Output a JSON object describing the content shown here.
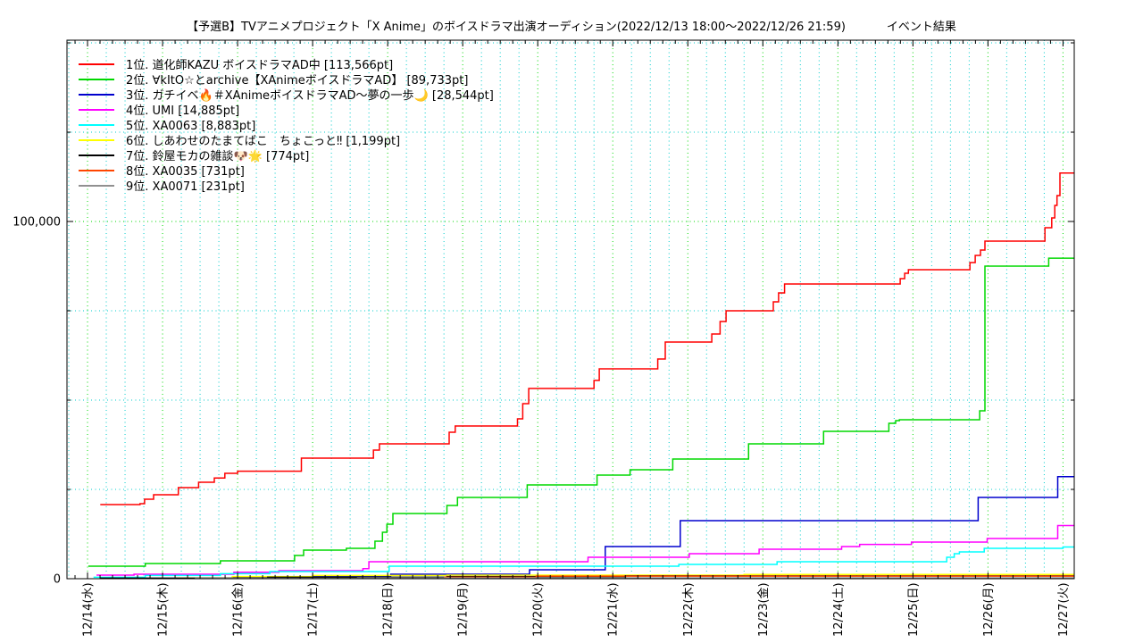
{
  "title": {
    "main": "【予選B】TVアニメプロジェクト「X Anime」のボイスドラマ出演オーディション(2022/12/13 18:00〜2022/12/26 21:59)",
    "suffix": "イベント結果"
  },
  "chart_data": {
    "type": "line",
    "subtype": "step-after",
    "grid": true,
    "legend_position": "top-left",
    "x_range_days": [
      -0.274,
      13.15
    ],
    "y_range": [
      0,
      150750
    ],
    "x_tick_labels": [
      "12/14(水)",
      "12/15(木)",
      "12/16(金)",
      "12/17(土)",
      "12/18(日)",
      "12/19(月)",
      "12/20(火)",
      "12/21(水)",
      "12/22(木)",
      "12/23(金)",
      "12/24(土)",
      "12/25(日)",
      "12/26(月)",
      "12/27(火)"
    ],
    "y_tick_labels": [
      {
        "value": 0,
        "label": "0"
      },
      {
        "value": 100000,
        "label": "100,000"
      }
    ],
    "grid_style": {
      "x_minor_step_days": 0.25,
      "x_major_step_days": 1,
      "y_minor_step": 25000,
      "y_major_step": 100000,
      "minor_color": "#00cccc",
      "major_color": "#00d800"
    },
    "axis_tick_style": {
      "x_minor_step_days": 0.16667,
      "y_minor_step": 25000,
      "minor_len": 4,
      "major_len": 7
    },
    "series": [
      {
        "rank": 1,
        "name": "道化師KAZU ボイスドラマAD中",
        "final_pt": 113566,
        "legend_label": "1位. 道化師KAZU ボイスドラマAD中 [113,566pt]",
        "color": "#ff0000",
        "points": [
          [
            0.17,
            20750
          ],
          [
            0.7,
            21000
          ],
          [
            0.76,
            22250
          ],
          [
            0.88,
            23500
          ],
          [
            1.21,
            25500
          ],
          [
            1.48,
            27000
          ],
          [
            1.69,
            28200
          ],
          [
            1.83,
            29500
          ],
          [
            2.0,
            30100
          ],
          [
            2.85,
            33750
          ],
          [
            3.81,
            36000
          ],
          [
            3.89,
            37750
          ],
          [
            4.82,
            41000
          ],
          [
            4.9,
            42750
          ],
          [
            5.73,
            44750
          ],
          [
            5.8,
            49000
          ],
          [
            5.88,
            53250
          ],
          [
            6.75,
            55500
          ],
          [
            6.82,
            58750
          ],
          [
            7.6,
            61500
          ],
          [
            7.7,
            66250
          ],
          [
            8.32,
            68500
          ],
          [
            8.43,
            72000
          ],
          [
            8.51,
            75000
          ],
          [
            9.14,
            77500
          ],
          [
            9.21,
            80000
          ],
          [
            9.29,
            82500
          ],
          [
            10.83,
            84000
          ],
          [
            10.89,
            85500
          ],
          [
            10.94,
            86500
          ],
          [
            11.76,
            88500
          ],
          [
            11.83,
            90500
          ],
          [
            11.9,
            92000
          ],
          [
            11.96,
            94500
          ],
          [
            12.76,
            98250
          ],
          [
            12.85,
            101000
          ],
          [
            12.89,
            104500
          ],
          [
            12.92,
            107250
          ],
          [
            12.96,
            113566
          ]
        ]
      },
      {
        "rank": 2,
        "name": "∀kItO☆とarchive【XAnimeボイスドラマAD】",
        "final_pt": 89733,
        "legend_label": "2位. ∀kItO☆とarchive【XAnimeボイスドラマAD】 [89,733pt]",
        "color": "#00d800",
        "points": [
          [
            0.01,
            3500
          ],
          [
            0.77,
            4250
          ],
          [
            1.77,
            5000
          ],
          [
            2.76,
            6500
          ],
          [
            2.88,
            8000
          ],
          [
            3.45,
            8500
          ],
          [
            3.83,
            10500
          ],
          [
            3.93,
            13000
          ],
          [
            3.99,
            15250
          ],
          [
            4.07,
            18250
          ],
          [
            4.79,
            20500
          ],
          [
            4.93,
            22750
          ],
          [
            5.86,
            26250
          ],
          [
            6.79,
            29000
          ],
          [
            7.23,
            30500
          ],
          [
            7.8,
            33500
          ],
          [
            8.81,
            37750
          ],
          [
            9.81,
            41250
          ],
          [
            10.68,
            43500
          ],
          [
            10.77,
            44250
          ],
          [
            10.82,
            44500
          ],
          [
            11.89,
            47000
          ],
          [
            11.96,
            87500
          ],
          [
            12.81,
            89733
          ]
        ]
      },
      {
        "rank": 3,
        "name": "ガチイベ🔥＃XAnimeボイスドラマAD〜夢の一歩🌙",
        "final_pt": 28544,
        "legend_label": "3位. ガチイベ🔥＃XAnimeボイスドラマAD〜夢の一歩🌙 [28,544pt]",
        "color": "#0000cd",
        "points": [
          [
            0.2,
            100
          ],
          [
            1.93,
            400
          ],
          [
            3.0,
            700
          ],
          [
            4.04,
            1250
          ],
          [
            5.89,
            2500
          ],
          [
            6.9,
            9000
          ],
          [
            7.9,
            16250
          ],
          [
            11.87,
            22750
          ],
          [
            12.93,
            28544
          ]
        ]
      },
      {
        "rank": 4,
        "name": "UMI",
        "final_pt": 14885,
        "legend_label": "4位. UMI [14,885pt]",
        "color": "#ff00ff",
        "points": [
          [
            0.12,
            1000
          ],
          [
            0.62,
            1250
          ],
          [
            1.95,
            1800
          ],
          [
            2.55,
            2250
          ],
          [
            3.67,
            2800
          ],
          [
            3.75,
            4750
          ],
          [
            6.67,
            6000
          ],
          [
            8.02,
            7000
          ],
          [
            8.95,
            8250
          ],
          [
            10.05,
            9000
          ],
          [
            10.29,
            9600
          ],
          [
            10.98,
            10250
          ],
          [
            11.99,
            11250
          ],
          [
            12.93,
            14885
          ]
        ]
      },
      {
        "rank": 5,
        "name": "XA0063",
        "final_pt": 8883,
        "legend_label": "5位. XA0063 [8,883pt]",
        "color": "#00ffff",
        "points": [
          [
            0.08,
            400
          ],
          [
            0.77,
            900
          ],
          [
            1.77,
            1400
          ],
          [
            2.43,
            2000
          ],
          [
            4.02,
            3500
          ],
          [
            7.88,
            4000
          ],
          [
            9.19,
            4750
          ],
          [
            11.45,
            6000
          ],
          [
            11.55,
            7000
          ],
          [
            11.62,
            7500
          ],
          [
            11.95,
            8500
          ],
          [
            13.0,
            8883
          ]
        ]
      },
      {
        "rank": 6,
        "name": "しあわせのたまてばこ　ちょこっと‼",
        "final_pt": 1199,
        "legend_label": "6位. しあわせのたまてばこ　ちょこっと‼ [1,199pt]",
        "color": "#ffff00",
        "points": [
          [
            1.18,
            200
          ],
          [
            1.93,
            600
          ],
          [
            3.0,
            900
          ],
          [
            4.79,
            1000
          ],
          [
            8.75,
            1199
          ]
        ]
      },
      {
        "rank": 7,
        "name": "鈴屋モカの雑談🐶🌟",
        "final_pt": 774,
        "legend_label": "7位. 鈴屋モカの雑談🐶🌟 [774pt]",
        "color": "#000000",
        "points": [
          [
            0.17,
            150
          ],
          [
            2.4,
            400
          ],
          [
            4.79,
            600
          ],
          [
            7.17,
            774
          ]
        ]
      },
      {
        "rank": 8,
        "name": "XA0035",
        "final_pt": 731,
        "legend_label": "8位. XA0035 [731pt]",
        "color": "#ff4500",
        "points": [
          [
            4.75,
            400
          ],
          [
            5.98,
            731
          ]
        ]
      },
      {
        "rank": 9,
        "name": "XA0071",
        "final_pt": 231,
        "legend_label": "9位. XA0071 [231pt]",
        "color": "#909090",
        "points": [
          [
            1.43,
            100
          ],
          [
            3.6,
            231
          ]
        ]
      }
    ]
  }
}
